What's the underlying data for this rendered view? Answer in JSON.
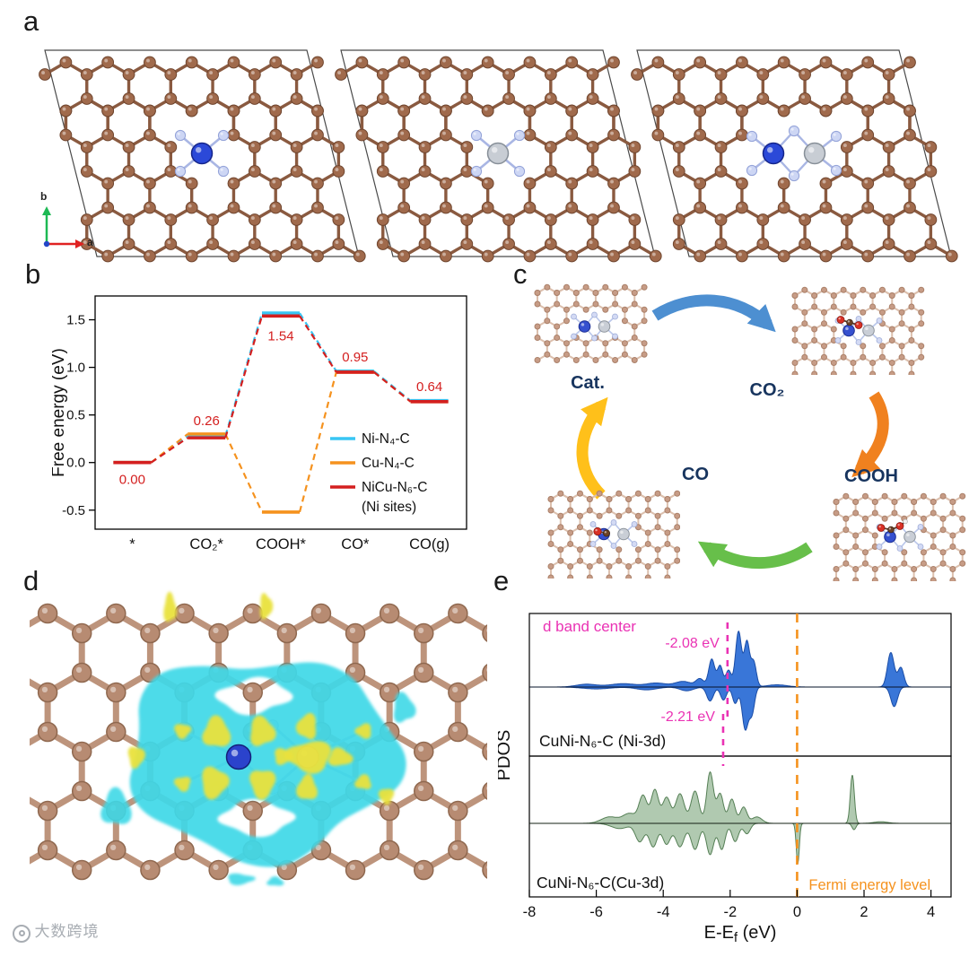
{
  "panel_labels": {
    "a": "a",
    "b": "b",
    "c": "c",
    "d": "d",
    "e": "e"
  },
  "axis_indicator": {
    "up": "b",
    "right": "a"
  },
  "watermark": {
    "text": "大数跨境"
  },
  "cycle": {
    "labels": {
      "cat": "Cat.",
      "co2": "CO₂",
      "cooh": "COOH",
      "co": "CO"
    },
    "arrow_colors": {
      "top": "#4d8fd1",
      "right": "#f0811f",
      "bottom": "#67bf4a",
      "left": "#ffc01a"
    }
  },
  "chart_data": [
    {
      "id": "free-energy-diagram",
      "type": "line",
      "ylabel": "Free energy (eV)",
      "ylim": [
        -0.7,
        1.75
      ],
      "ytick_vals": [
        -0.5,
        0.0,
        0.5,
        1.0,
        1.5
      ],
      "yticks": [
        "-0.5",
        "0.0",
        "0.5",
        "1.0",
        "1.5"
      ],
      "categories": [
        "*",
        "CO₂*",
        "COOH*",
        "CO*",
        "CO(g)"
      ],
      "series": [
        {
          "name": "Ni-N₄-C",
          "color": "#38c6f4",
          "values": [
            0.0,
            0.28,
            1.57,
            0.96,
            0.65
          ]
        },
        {
          "name": "Cu-N₄-C",
          "color": "#f5921e",
          "values": [
            0.0,
            0.3,
            -0.52,
            0.95,
            0.64
          ]
        },
        {
          "name": "NiCu-N₆-C",
          "name2": "(Ni sites)",
          "color": "#d41f1f",
          "values": [
            0.0,
            0.26,
            1.54,
            0.95,
            0.64
          ]
        }
      ],
      "annotation_color": "#d41f1f",
      "annotations": [
        {
          "text": "0.00",
          "cat": 0,
          "val": 0.0,
          "dy": 24
        },
        {
          "text": "0.26",
          "cat": 1,
          "val": 0.3,
          "dy": -10
        },
        {
          "text": "1.54",
          "cat": 2,
          "val": 1.54,
          "dy": 27
        },
        {
          "text": "0.95",
          "cat": 3,
          "val": 0.95,
          "dy": -12
        },
        {
          "text": "0.64",
          "cat": 4,
          "val": 0.64,
          "dy": -12
        }
      ]
    },
    {
      "id": "pdos",
      "type": "area",
      "ylabel": "PDOS",
      "xlabel_pre": "E-E",
      "xlabel_sub": "f",
      "xlabel_post": " (eV)",
      "xlim": [
        -8,
        4.6
      ],
      "xticks": [
        -8,
        -6,
        -4,
        -2,
        0,
        2,
        4
      ],
      "fermi": {
        "x": 0,
        "label": "Fermi energy level",
        "color": "#f5921e"
      },
      "d_band": {
        "label": "d band center",
        "color": "#ea32b4",
        "centers": [
          {
            "value": -2.08,
            "text": "-2.08 eV"
          },
          {
            "value": -2.21,
            "text": "-2.21 eV"
          }
        ]
      },
      "panels": [
        {
          "label": "CuNi-N₆-C (Ni-3d)",
          "fill": "#2e6fd6",
          "stroke": "#1b4da6",
          "up_peaks": [
            [
              -6.3,
              0.05,
              0.3
            ],
            [
              -5.2,
              0.06,
              0.4
            ],
            [
              -4.2,
              0.07,
              0.3
            ],
            [
              -3.4,
              0.1,
              0.25
            ],
            [
              -2.9,
              0.14,
              0.12
            ],
            [
              -2.55,
              0.5,
              0.09
            ],
            [
              -2.3,
              0.38,
              0.08
            ],
            [
              -2.05,
              0.3,
              0.08
            ],
            [
              -1.75,
              1.0,
              0.09
            ],
            [
              -1.5,
              0.8,
              0.08
            ],
            [
              -1.3,
              0.45,
              0.08
            ],
            [
              -0.6,
              0.04,
              0.3
            ],
            [
              2.8,
              0.62,
              0.1
            ],
            [
              3.1,
              0.35,
              0.09
            ]
          ],
          "down_peaks": [
            [
              -6.0,
              0.04,
              0.4
            ],
            [
              -4.5,
              0.06,
              0.3
            ],
            [
              -3.3,
              0.08,
              0.2
            ],
            [
              -2.6,
              0.3,
              0.1
            ],
            [
              -2.2,
              0.28,
              0.09
            ],
            [
              -1.85,
              0.35,
              0.08
            ],
            [
              -1.55,
              0.9,
              0.09
            ],
            [
              -1.35,
              0.55,
              0.08
            ],
            [
              2.9,
              0.42,
              0.1
            ]
          ]
        },
        {
          "label": "CuNi-N₆-C(Cu-3d)",
          "fill": "#9cbc9c",
          "stroke": "#557f55",
          "up_peaks": [
            [
              -5.6,
              0.12,
              0.25
            ],
            [
              -5.0,
              0.18,
              0.2
            ],
            [
              -4.6,
              0.5,
              0.12
            ],
            [
              -4.25,
              0.62,
              0.11
            ],
            [
              -3.9,
              0.48,
              0.12
            ],
            [
              -3.5,
              0.55,
              0.13
            ],
            [
              -3.05,
              0.6,
              0.12
            ],
            [
              -2.6,
              0.95,
              0.1
            ],
            [
              -2.3,
              0.55,
              0.1
            ],
            [
              -1.95,
              0.45,
              0.1
            ],
            [
              -1.6,
              0.3,
              0.1
            ],
            [
              -1.2,
              0.12,
              0.15
            ],
            [
              1.65,
              0.9,
              0.06
            ],
            [
              2.5,
              0.03,
              0.2
            ]
          ],
          "down_peaks": [
            [
              -5.3,
              0.1,
              0.25
            ],
            [
              -4.7,
              0.35,
              0.13
            ],
            [
              -4.3,
              0.45,
              0.12
            ],
            [
              -3.9,
              0.4,
              0.12
            ],
            [
              -3.5,
              0.45,
              0.13
            ],
            [
              -3.05,
              0.5,
              0.12
            ],
            [
              -2.6,
              0.6,
              0.11
            ],
            [
              -2.25,
              0.5,
              0.1
            ],
            [
              -1.85,
              0.35,
              0.1
            ],
            [
              -1.5,
              0.2,
              0.1
            ],
            [
              0.02,
              0.78,
              0.045
            ],
            [
              1.7,
              0.12,
              0.06
            ]
          ]
        }
      ]
    }
  ]
}
